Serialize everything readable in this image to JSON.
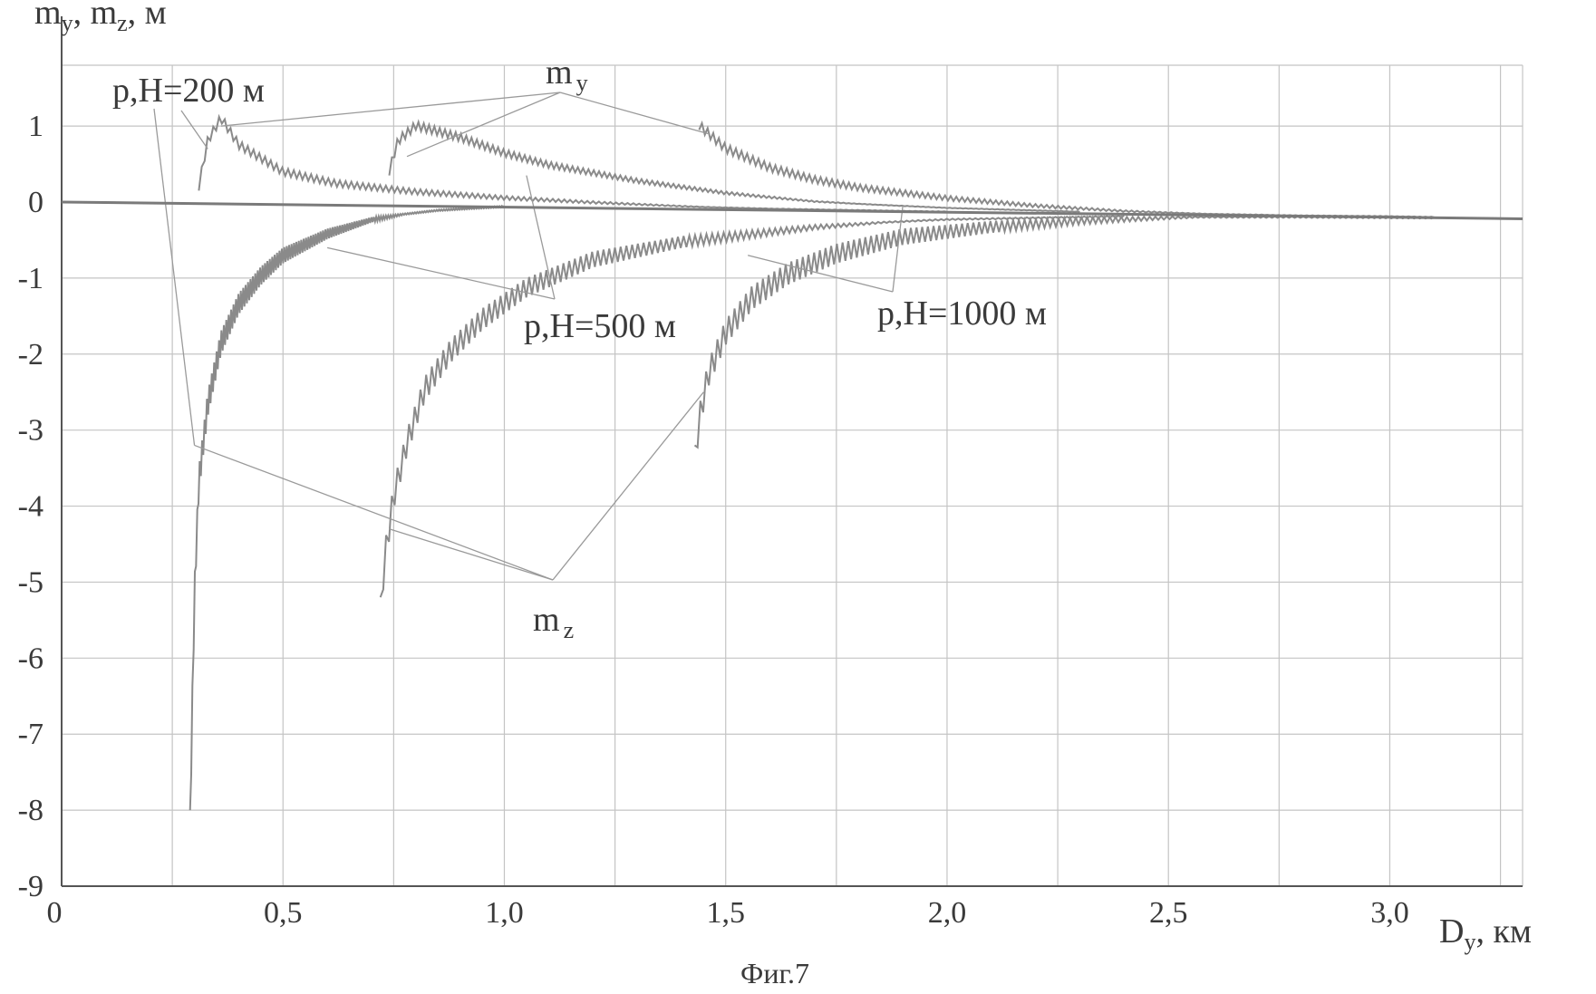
{
  "figure_caption": "Фиг.7",
  "chart_data": {
    "type": "line",
    "ylabel": {
      "m1": "m",
      "s1": "y",
      "sep": ", ",
      "m2": "m",
      "s2": "z",
      "unit": ", м"
    },
    "xlabel": {
      "m": "D",
      "s": "y",
      "unit": ", км"
    },
    "xlim": [
      0,
      3.3
    ],
    "ylim": [
      -9,
      1.8
    ],
    "x_ticks": [
      {
        "value": 0,
        "label": "0"
      },
      {
        "value": 0.5,
        "label": "0,5"
      },
      {
        "value": 1.0,
        "label": "1,0"
      },
      {
        "value": 1.5,
        "label": "1,5"
      },
      {
        "value": 2.0,
        "label": "2,0"
      },
      {
        "value": 2.5,
        "label": "2,5"
      },
      {
        "value": 3.0,
        "label": "3,0"
      }
    ],
    "y_ticks": [
      {
        "value": 1,
        "label": "1"
      },
      {
        "value": 0,
        "label": "0"
      },
      {
        "value": -1,
        "label": "-1"
      },
      {
        "value": -2,
        "label": "-2"
      },
      {
        "value": -3,
        "label": "-3"
      },
      {
        "value": -4,
        "label": "-4"
      },
      {
        "value": -5,
        "label": "-5"
      },
      {
        "value": -6,
        "label": "-6"
      },
      {
        "value": -7,
        "label": "-7"
      },
      {
        "value": -8,
        "label": "-8"
      },
      {
        "value": -9,
        "label": "-9"
      }
    ],
    "grid": true,
    "colors": {
      "curve": "#8a8a8a",
      "grid": "#c4c4c4",
      "axis": "#555555",
      "zero": "#7a7a7a",
      "leader": "#9a9a9a"
    },
    "series": [
      {
        "name": "m_y, p,H=200 м",
        "kind": "m_y",
        "x": [
          0.31,
          0.33,
          0.36,
          0.4,
          0.5,
          0.62,
          0.8,
          1.0,
          1.2,
          1.4,
          1.6,
          1.8,
          2.0
        ],
        "y": [
          0.15,
          0.75,
          1.05,
          0.7,
          0.35,
          0.2,
          0.1,
          0.03,
          -0.02,
          -0.06,
          -0.09,
          -0.11,
          -0.13
        ]
      },
      {
        "name": "m_z, p,H=200 м",
        "kind": "m_z",
        "x": [
          0.29,
          0.295,
          0.3,
          0.31,
          0.33,
          0.36,
          0.4,
          0.45,
          0.5,
          0.6,
          0.7,
          0.85,
          1.0
        ],
        "y": [
          -8.0,
          -6.5,
          -5.0,
          -3.5,
          -2.5,
          -1.7,
          -1.2,
          -0.85,
          -0.6,
          -0.35,
          -0.2,
          -0.1,
          -0.05
        ]
      },
      {
        "name": "m_y, p,H=500 м",
        "kind": "m_y",
        "x": [
          0.74,
          0.76,
          0.8,
          0.9,
          1.0,
          1.1,
          1.3,
          1.5,
          1.7,
          2.0,
          2.3
        ],
        "y": [
          0.35,
          0.75,
          0.95,
          0.8,
          0.6,
          0.45,
          0.25,
          0.1,
          0.0,
          -0.08,
          -0.13
        ]
      },
      {
        "name": "m_z, p,H=500 м",
        "kind": "m_z",
        "x": [
          0.72,
          0.73,
          0.75,
          0.78,
          0.82,
          0.88,
          0.95,
          1.05,
          1.2,
          1.4,
          1.7,
          2.0,
          2.4
        ],
        "y": [
          -5.2,
          -4.5,
          -3.7,
          -3.0,
          -2.3,
          -1.8,
          -1.4,
          -1.0,
          -0.65,
          -0.45,
          -0.3,
          -0.22,
          -0.18
        ]
      },
      {
        "name": "m_y, p,H=1000 м",
        "kind": "m_y",
        "x": [
          1.44,
          1.46,
          1.5,
          1.6,
          1.7,
          1.8,
          2.0,
          2.2,
          2.4,
          2.6,
          2.8,
          3.0,
          3.1
        ],
        "y": [
          0.95,
          0.85,
          0.65,
          0.4,
          0.25,
          0.15,
          0.02,
          -0.07,
          -0.13,
          -0.16,
          -0.18,
          -0.19,
          -0.2
        ]
      },
      {
        "name": "m_z, p,H=1000 м",
        "kind": "m_z",
        "x": [
          1.43,
          1.44,
          1.46,
          1.5,
          1.56,
          1.64,
          1.75,
          1.9,
          2.1,
          2.3,
          2.5,
          2.8,
          3.1
        ],
        "y": [
          -3.2,
          -2.7,
          -2.1,
          -1.55,
          -1.1,
          -0.8,
          -0.55,
          -0.35,
          -0.25,
          -0.2,
          -0.19,
          -0.19,
          -0.2
        ]
      }
    ],
    "annotations": [
      {
        "text": "p,H=200 м",
        "x": 0.12,
        "y": 1.35
      },
      {
        "text": "p,H=500 м",
        "x": 1.05,
        "y": -1.6
      },
      {
        "text": "p,H=1000 м",
        "x": 1.85,
        "y": -1.5
      },
      {
        "text_m": "m",
        "text_s": "y",
        "x": 1.1,
        "y": 1.45
      },
      {
        "text_m": "m",
        "text_s": "z",
        "x": 1.08,
        "y": -5.6
      }
    ]
  }
}
